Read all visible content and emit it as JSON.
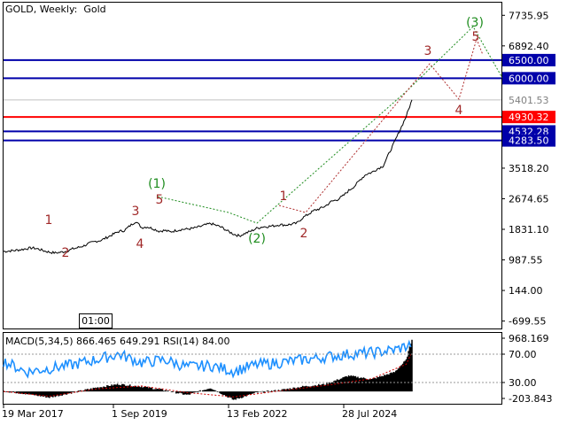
{
  "chart_window": {
    "title": "GOLD, Weekly:  Gold",
    "indicator_label": "MACD(5,34,5) 866.465 649.291 RSI(14) 84.00",
    "clock_label": "01:00"
  },
  "chart_data": [
    {
      "type": "line",
      "title": "GOLD, Weekly:  Gold",
      "y_axis_ticks": [
        7735.95,
        6892.4,
        5401.53,
        3518.2,
        2674.65,
        1831.1,
        987.55,
        144.0,
        -699.55
      ],
      "ylim": [
        -905,
        8085
      ],
      "x_axis_ticks": [
        "19 Mar 2017",
        "1 Sep 2019",
        "13 Feb 2022",
        "28 Jul 2024"
      ],
      "series": [
        {
          "role": "price",
          "color": "#000000",
          "values": [
            [
              0,
              1220
            ],
            [
              5,
              1235
            ],
            [
              10,
              1250
            ],
            [
              15,
              1270
            ],
            [
              20,
              1300
            ],
            [
              25,
              1320
            ],
            [
              30,
              1290
            ],
            [
              35,
              1240
            ],
            [
              40,
              1200
            ],
            [
              45,
              1180
            ],
            [
              50,
              1200
            ],
            [
              55,
              1230
            ],
            [
              60,
              1290
            ],
            [
              65,
              1330
            ],
            [
              70,
              1380
            ],
            [
              75,
              1450
            ],
            [
              80,
              1500
            ],
            [
              85,
              1530
            ],
            [
              90,
              1610
            ],
            [
              95,
              1690
            ],
            [
              100,
              1770
            ],
            [
              105,
              1800
            ],
            [
              110,
              1930
            ],
            [
              115,
              2050
            ],
            [
              120,
              1880
            ],
            [
              125,
              1900
            ],
            [
              130,
              1850
            ],
            [
              135,
              1780
            ],
            [
              140,
              1800
            ],
            [
              145,
              1760
            ],
            [
              150,
              1800
            ],
            [
              155,
              1830
            ],
            [
              160,
              1840
            ],
            [
              165,
              1860
            ],
            [
              170,
              1900
            ],
            [
              175,
              1950
            ],
            [
              180,
              1990
            ],
            [
              185,
              1940
            ],
            [
              190,
              1880
            ],
            [
              195,
              1780
            ],
            [
              200,
              1700
            ],
            [
              205,
              1650
            ],
            [
              210,
              1720
            ],
            [
              215,
              1780
            ],
            [
              220,
              1860
            ],
            [
              225,
              1900
            ],
            [
              230,
              1910
            ],
            [
              235,
              1930
            ],
            [
              240,
              1960
            ],
            [
              245,
              1950
            ],
            [
              250,
              1970
            ],
            [
              255,
              2000
            ],
            [
              260,
              2150
            ],
            [
              265,
              2250
            ],
            [
              270,
              2350
            ],
            [
              275,
              2400
            ],
            [
              280,
              2480
            ],
            [
              285,
              2600
            ],
            [
              290,
              2650
            ],
            [
              295,
              2750
            ],
            [
              300,
              2900
            ],
            [
              305,
              3020
            ],
            [
              310,
              3200
            ],
            [
              315,
              3350
            ],
            [
              320,
              3400
            ],
            [
              325,
              3500
            ],
            [
              330,
              3580
            ],
            [
              335,
              3920
            ],
            [
              340,
              4250
            ],
            [
              345,
              4600
            ],
            [
              350,
              4950
            ],
            [
              355,
              5401.53
            ]
          ]
        }
      ],
      "horizontal_levels": [
        {
          "value": 6500.0,
          "label": "6500.00",
          "color": "#0000aa"
        },
        {
          "value": 6000.0,
          "label": "6000.00",
          "color": "#0000aa"
        },
        {
          "value": 5401.53,
          "label": "5401.53",
          "color": "#c0c0c0"
        },
        {
          "value": 4930.32,
          "label": "4930.32",
          "color": "#ff0000"
        },
        {
          "value": 4532.28,
          "label": "4532.28",
          "color": "#0000aa"
        },
        {
          "value": 4283.5,
          "label": "4283.50",
          "color": "#0000aa"
        }
      ],
      "wave_labels": {
        "minor_color": "#a02828",
        "major_color": "#1e8c1e",
        "minor": [
          "1",
          "2",
          "3",
          "4",
          "5",
          "1",
          "2",
          "3",
          "4",
          "5"
        ],
        "major": [
          "(1)",
          "(2)",
          "(3)"
        ]
      },
      "grid": false
    },
    {
      "type": "area",
      "title": "MACD(5,34,5) 866.465 649.291 RSI(14) 84.00",
      "y_axis_ticks": [
        968.169,
        70.0,
        30.0,
        -203.843
      ],
      "ylim": [
        -203.843,
        968.169
      ],
      "series": [
        {
          "role": "macd",
          "color": "#000000",
          "values": [
            [
              0,
              5
            ],
            [
              20,
              -40
            ],
            [
              40,
              -100
            ],
            [
              60,
              -20
            ],
            [
              80,
              60
            ],
            [
              100,
              120
            ],
            [
              120,
              80
            ],
            [
              140,
              20
            ],
            [
              160,
              -60
            ],
            [
              180,
              60
            ],
            [
              200,
              -140
            ],
            [
              220,
              -20
            ],
            [
              240,
              20
            ],
            [
              260,
              80
            ],
            [
              280,
              120
            ],
            [
              300,
              260
            ],
            [
              320,
              200
            ],
            [
              340,
              320
            ],
            [
              350,
              520
            ],
            [
              355,
              866.465
            ]
          ]
        },
        {
          "role": "signal",
          "color": "#cc0000",
          "values": [
            [
              0,
              0
            ],
            [
              40,
              -80
            ],
            [
              80,
              40
            ],
            [
              120,
              90
            ],
            [
              160,
              -20
            ],
            [
              200,
              -90
            ],
            [
              240,
              10
            ],
            [
              280,
              100
            ],
            [
              320,
              210
            ],
            [
              350,
              450
            ],
            [
              355,
              649.291
            ]
          ]
        },
        {
          "role": "rsi",
          "color": "#1e90ff",
          "values": [
            [
              0,
              60
            ],
            [
              20,
              45
            ],
            [
              40,
              50
            ],
            [
              60,
              55
            ],
            [
              80,
              62
            ],
            [
              100,
              70
            ],
            [
              120,
              58
            ],
            [
              140,
              62
            ],
            [
              160,
              52
            ],
            [
              180,
              54
            ],
            [
              200,
              46
            ],
            [
              220,
              55
            ],
            [
              240,
              58
            ],
            [
              260,
              62
            ],
            [
              280,
              66
            ],
            [
              300,
              70
            ],
            [
              320,
              72
            ],
            [
              340,
              76
            ],
            [
              355,
              84.0
            ]
          ]
        }
      ],
      "dotted_levels": [
        70.0,
        30.0
      ]
    }
  ]
}
